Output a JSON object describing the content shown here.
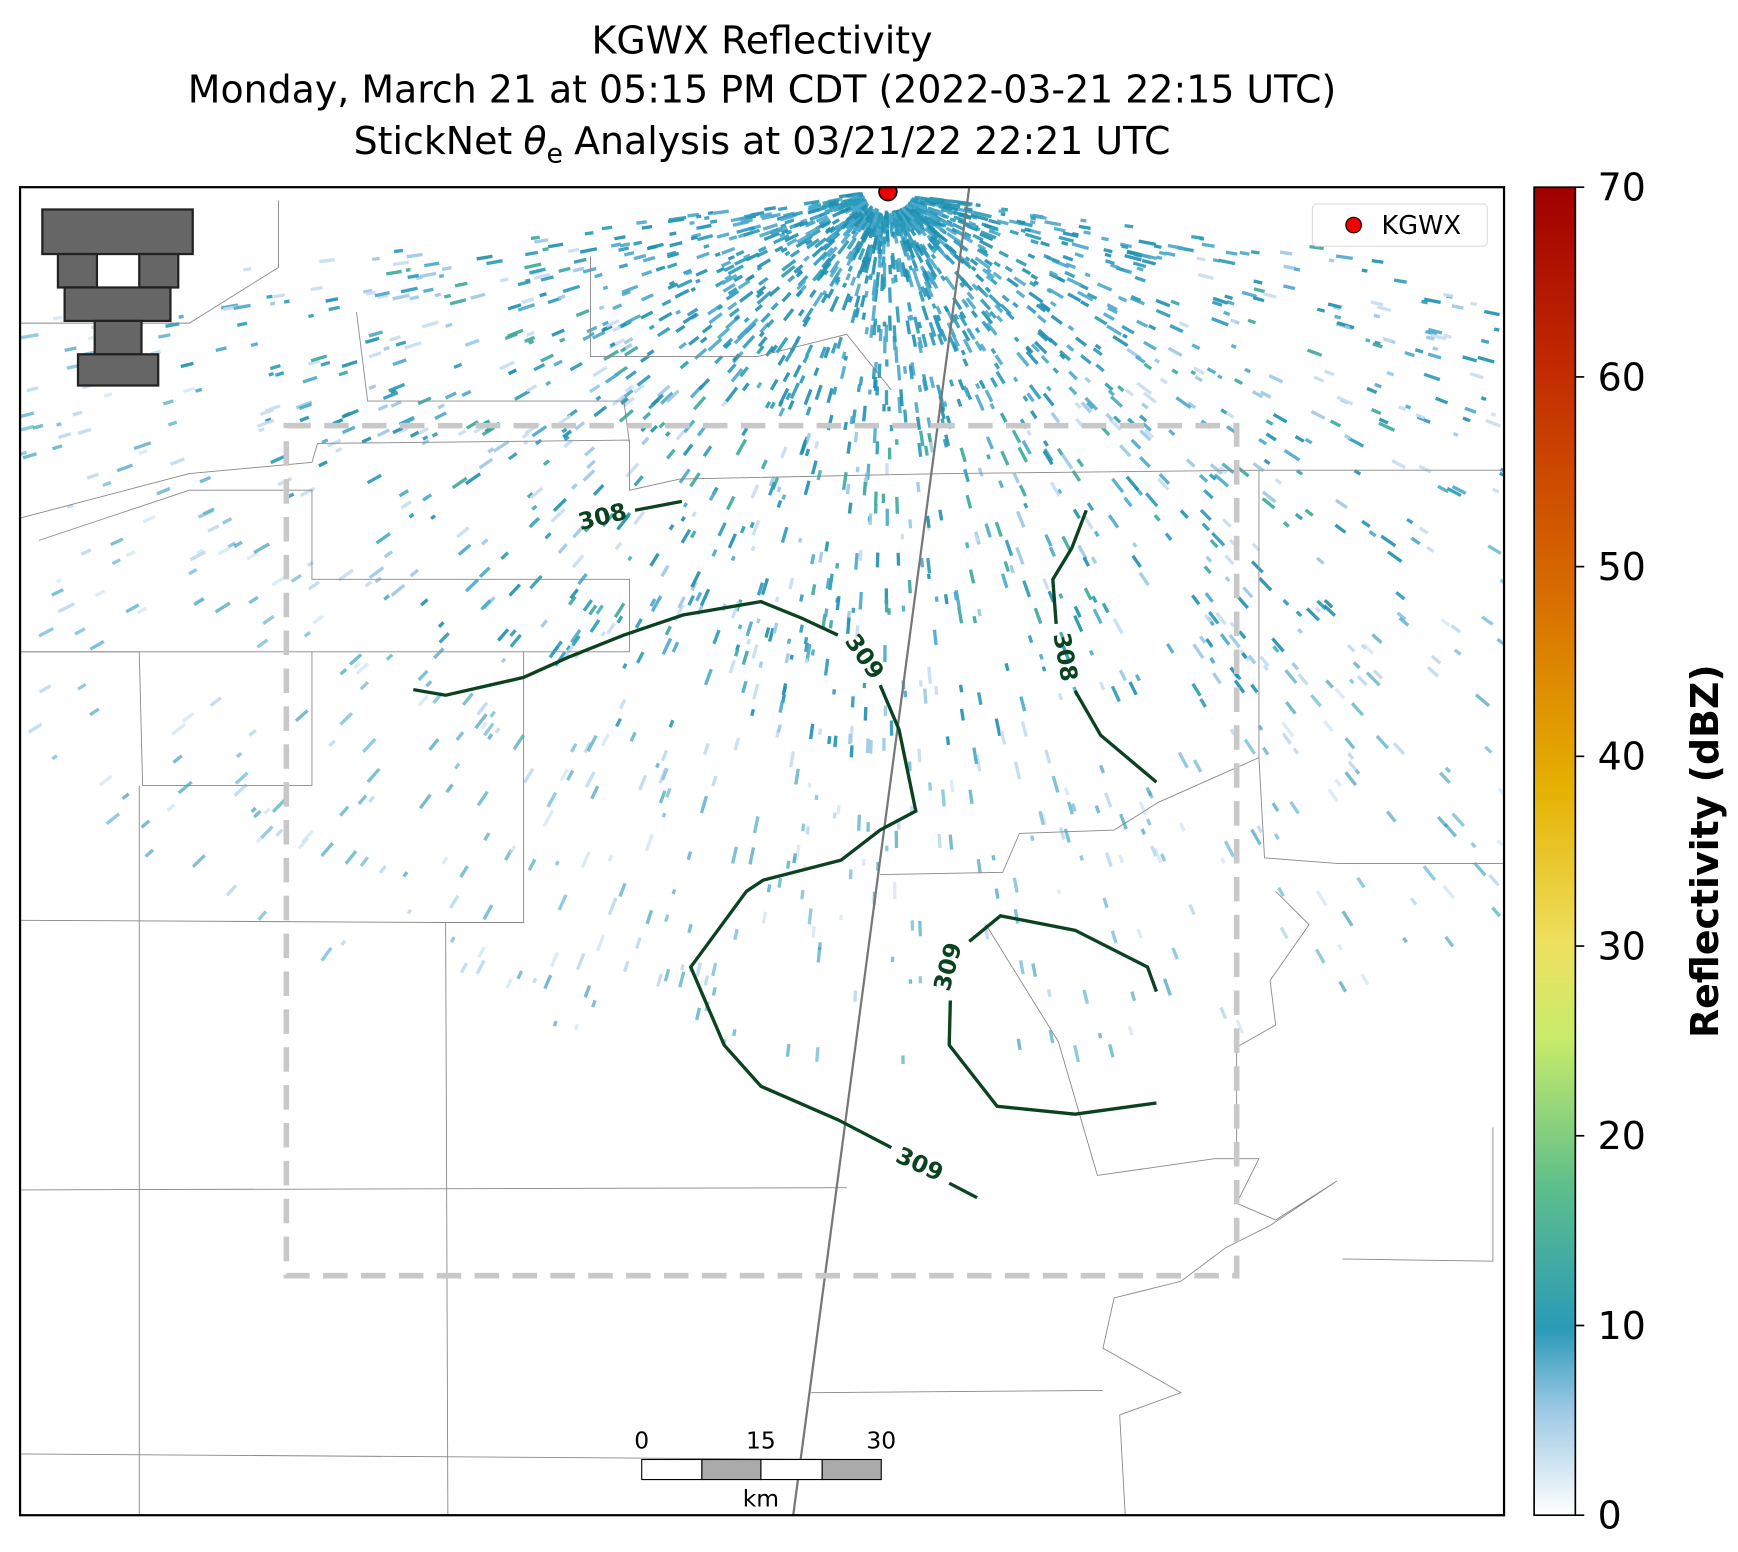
{
  "title": {
    "line1": "KGWX Reflectivity",
    "line2": "Monday, March 21 at 05:15 PM CDT (2022-03-21 22:15 UTC)",
    "line3": [
      "StickNet",
      "θ",
      "e",
      "Analysis at 03/21/22 22:21 UTC"
    ]
  },
  "legend": {
    "label": "KGWX"
  },
  "colorbar": {
    "label": "Reflectivity (dBZ)",
    "range": [
      0,
      70
    ],
    "ticks": [
      0,
      10,
      20,
      30,
      40,
      50,
      60,
      70
    ]
  },
  "contours": [
    {
      "label": "308"
    },
    {
      "label": "309"
    },
    {
      "label": "308"
    },
    {
      "label": "309"
    },
    {
      "label": "309"
    }
  ],
  "scale_bar": {
    "ticks": [
      0,
      15,
      30
    ],
    "unit": "km"
  }
}
